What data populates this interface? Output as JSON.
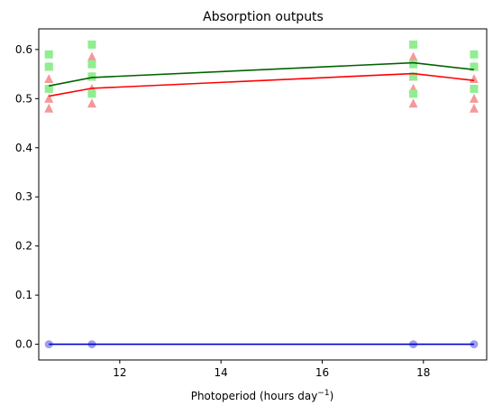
{
  "chart_data": {
    "type": "scatter",
    "title": "Absorption outputs",
    "xlabel_main": "Photoperiod (hours day",
    "xlabel_sup": "−1",
    "xlabel_close": ")",
    "ylabel": "",
    "xlim": [
      10.4,
      19.25
    ],
    "ylim": [
      -0.032,
      0.642
    ],
    "xticks": [
      12,
      14,
      16,
      18
    ],
    "yticks": [
      0.0,
      0.1,
      0.2,
      0.3,
      0.4,
      0.5,
      0.6
    ],
    "ytick_labels": [
      "0.0",
      "0.1",
      "0.2",
      "0.3",
      "0.4",
      "0.5",
      "0.6"
    ],
    "grid": false,
    "legend": "none",
    "x": [
      10.6,
      11.45,
      17.8,
      19.0
    ],
    "series": [
      {
        "marker": "square",
        "color": "#90ee90",
        "line_color": "#006400",
        "points": [
          [
            10.6,
            0.59
          ],
          [
            10.6,
            0.565
          ],
          [
            10.6,
            0.52
          ],
          [
            11.45,
            0.61
          ],
          [
            11.45,
            0.57
          ],
          [
            11.45,
            0.545
          ],
          [
            11.45,
            0.51
          ],
          [
            17.8,
            0.61
          ],
          [
            17.8,
            0.57
          ],
          [
            17.8,
            0.545
          ],
          [
            17.8,
            0.51
          ],
          [
            19.0,
            0.59
          ],
          [
            19.0,
            0.565
          ],
          [
            19.0,
            0.52
          ]
        ],
        "mean": [
          0.526,
          0.543,
          0.573,
          0.559
        ]
      },
      {
        "marker": "triangle",
        "color": "#f4999a",
        "line_color": "#ff0000",
        "points": [
          [
            10.6,
            0.565
          ],
          [
            10.6,
            0.54
          ],
          [
            10.6,
            0.5
          ],
          [
            10.6,
            0.48
          ],
          [
            11.45,
            0.585
          ],
          [
            11.45,
            0.545
          ],
          [
            11.45,
            0.52
          ],
          [
            11.45,
            0.49
          ],
          [
            17.8,
            0.585
          ],
          [
            17.8,
            0.545
          ],
          [
            17.8,
            0.52
          ],
          [
            17.8,
            0.49
          ],
          [
            19.0,
            0.565
          ],
          [
            19.0,
            0.54
          ],
          [
            19.0,
            0.5
          ],
          [
            19.0,
            0.48
          ]
        ],
        "mean": [
          0.505,
          0.521,
          0.551,
          0.537
        ]
      },
      {
        "marker": "circle",
        "color": "#9f9ff0",
        "line_color": "#0000cd",
        "points": [
          [
            10.6,
            0.0
          ],
          [
            11.45,
            0.0
          ],
          [
            17.8,
            0.0
          ],
          [
            19.0,
            0.0
          ]
        ],
        "mean": [
          0.0,
          0.0,
          0.0,
          0.0
        ]
      }
    ]
  }
}
